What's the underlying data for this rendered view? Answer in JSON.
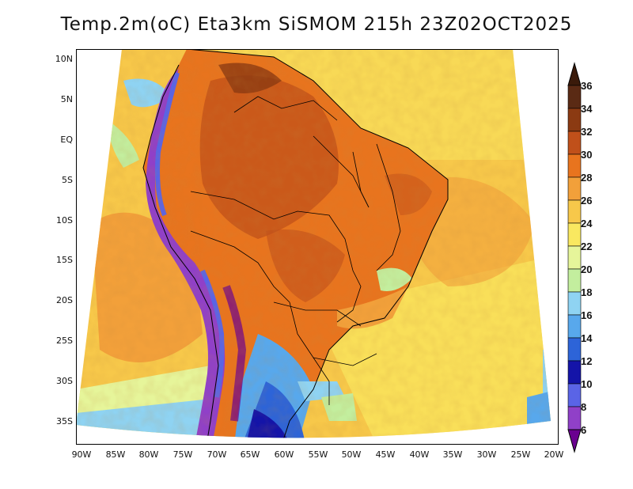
{
  "title": "Temp.2m(oC) Eta3km SiSMOM 215h 23Z02OCT2025",
  "lat_labels": [
    "10N",
    "5N",
    "EQ",
    "5S",
    "10S",
    "15S",
    "20S",
    "25S",
    "30S",
    "35S"
  ],
  "lon_labels": [
    "90W",
    "85W",
    "80W",
    "75W",
    "70W",
    "65W",
    "60W",
    "55W",
    "50W",
    "45W",
    "40W",
    "35W",
    "30W",
    "25W",
    "20W"
  ],
  "colorbar": {
    "labels": [
      "36",
      "34",
      "32",
      "30",
      "28",
      "26",
      "24",
      "22",
      "20",
      "18",
      "16",
      "14",
      "12",
      "10",
      "8",
      "6"
    ],
    "colors": [
      "#5a2a14",
      "#8b3a12",
      "#c0501a",
      "#e8741e",
      "#f2a03a",
      "#f7c84a",
      "#f9e860",
      "#e6f59a",
      "#c3ee9e",
      "#8fd3f2",
      "#58a8ec",
      "#2d64d8",
      "#1414a8",
      "#5a64e6",
      "#9040c8",
      "#6a0090"
    ]
  }
}
